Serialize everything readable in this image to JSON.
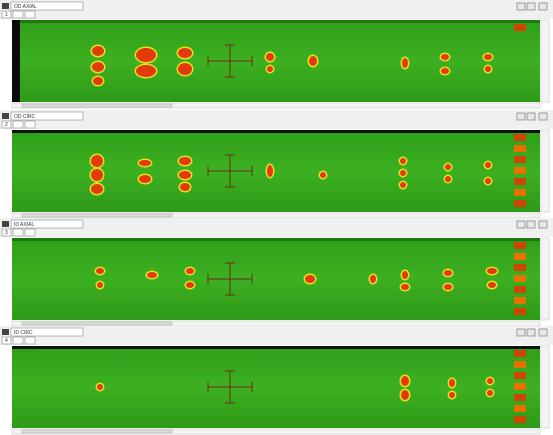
{
  "panels": [
    {
      "label": "OD AXIAL",
      "index": "1"
    },
    {
      "label": "OD CIRC",
      "index": "2"
    },
    {
      "label": "ID AXIAL",
      "index": "3"
    },
    {
      "label": "ID CIRC",
      "index": "4"
    }
  ]
}
